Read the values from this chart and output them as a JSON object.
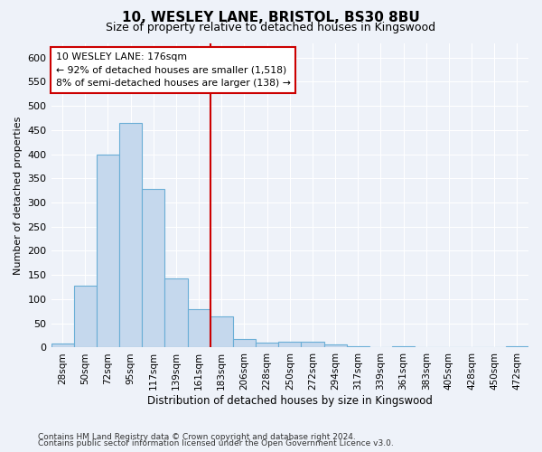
{
  "title": "10, WESLEY LANE, BRISTOL, BS30 8BU",
  "subtitle": "Size of property relative to detached houses in Kingswood",
  "xlabel": "Distribution of detached houses by size in Kingswood",
  "ylabel": "Number of detached properties",
  "bar_labels": [
    "28sqm",
    "50sqm",
    "72sqm",
    "95sqm",
    "117sqm",
    "139sqm",
    "161sqm",
    "183sqm",
    "206sqm",
    "228sqm",
    "250sqm",
    "272sqm",
    "294sqm",
    "317sqm",
    "339sqm",
    "361sqm",
    "383sqm",
    "405sqm",
    "428sqm",
    "450sqm",
    "472sqm"
  ],
  "bar_values": [
    8,
    128,
    400,
    465,
    328,
    143,
    80,
    65,
    18,
    10,
    13,
    13,
    6,
    3,
    0,
    3,
    0,
    0,
    0,
    0,
    3
  ],
  "bar_color": "#c5d8ed",
  "bar_edge_color": "#6aaed6",
  "background_color": "#eef2f9",
  "grid_color": "#ffffff",
  "annotation_line_color": "#cc0000",
  "annotation_box_line1": "10 WESLEY LANE: 176sqm",
  "annotation_box_line2": "← 92% of detached houses are smaller (1,518)",
  "annotation_box_line3": "8% of semi-detached houses are larger (138) →",
  "annotation_box_color": "#ffffff",
  "annotation_box_edge_color": "#cc0000",
  "footnote1": "Contains HM Land Registry data © Crown copyright and database right 2024.",
  "footnote2": "Contains public sector information licensed under the Open Government Licence v3.0.",
  "ylim_max": 630,
  "yticks": [
    0,
    50,
    100,
    150,
    200,
    250,
    300,
    350,
    400,
    450,
    500,
    550,
    600
  ]
}
